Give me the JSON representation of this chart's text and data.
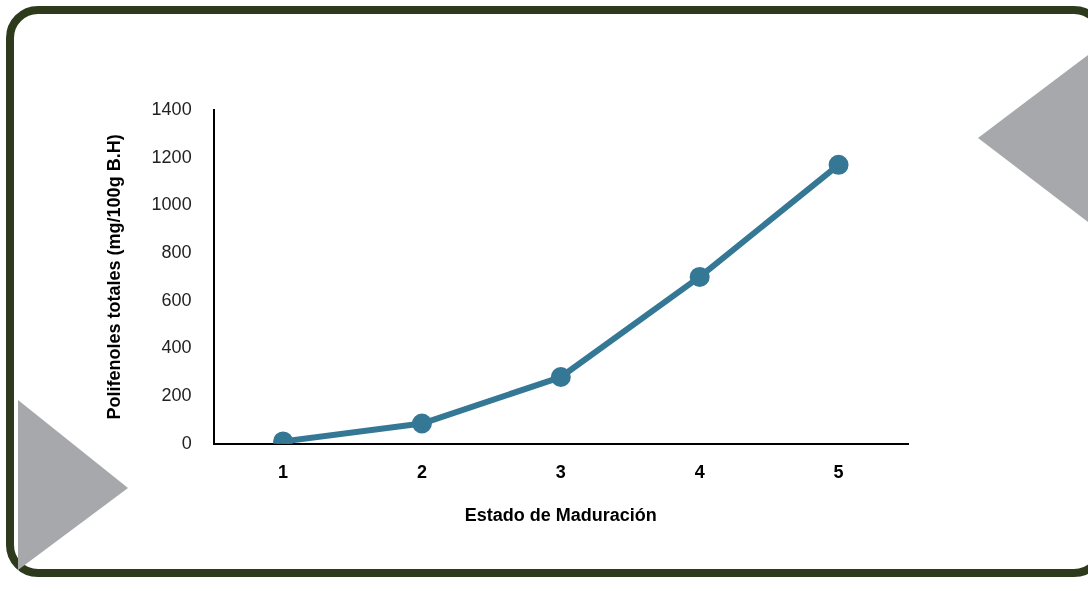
{
  "chart_data": {
    "type": "line",
    "xlabel": "Estado de Maduración",
    "ylabel": "Polifenoles totales (mg/100g B.H)",
    "categories": [
      "1",
      "2",
      "3",
      "4",
      "5"
    ],
    "series": [
      {
        "color": "#357895",
        "values": [
          10,
          85,
          280,
          700,
          1170
        ]
      }
    ],
    "ylim": [
      0,
      1400
    ],
    "yticks": [
      0,
      200,
      400,
      600,
      800,
      1000,
      1200,
      1400
    ],
    "marker": "circle"
  }
}
